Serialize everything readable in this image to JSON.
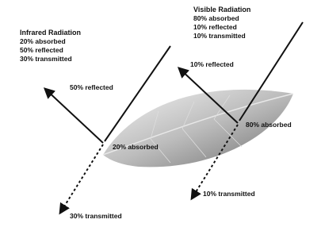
{
  "infrared": {
    "title": "Infrared Radiation",
    "items": [
      "20% absorbed",
      "50% reflected",
      "30% transmitted"
    ]
  },
  "visible": {
    "title": "Visible Radiation",
    "items": [
      "80% absorbed",
      "10% reflected",
      "10% transmitted"
    ]
  },
  "annotations": {
    "infrared_reflected": "50% reflected",
    "infrared_absorbed": "20% absorbed",
    "infrared_transmitted": "30% transmitted",
    "visible_reflected": "10% reflected",
    "visible_absorbed": "80% absorbed",
    "visible_transmitted": "10% transmitted"
  }
}
